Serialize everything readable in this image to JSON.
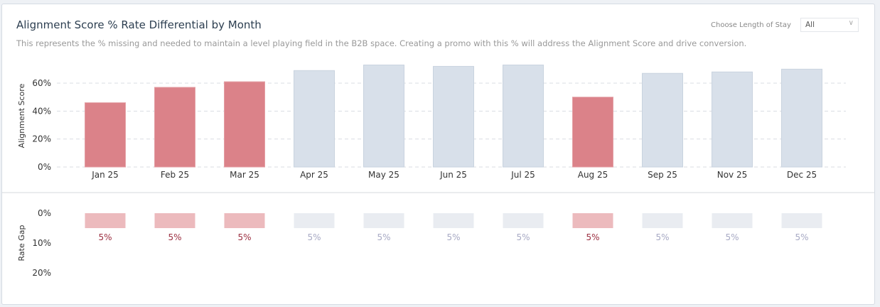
{
  "header": {
    "title": "Alignment Score % Rate Differential by Month",
    "subtitle": "This represents the % missing and needed to maintain a level playing field in the B2B space. Creating a promo with this % will address the Alignment Score and drive conversion.",
    "filter_label": "Choose Length of Stay",
    "filter_value": "All"
  },
  "colors": {
    "highlight": "#db8289",
    "normal": "#d8e0ea",
    "gap_highlight": "#ecbabd",
    "gap_normal": "#e9ecf1",
    "gap_label_highlight": "#9b2d3f",
    "gap_label_normal": "#a7a9c4"
  },
  "chart_data": [
    {
      "type": "bar",
      "ylabel": "Alignment Score",
      "ylim": [
        0,
        70
      ],
      "yticks": [
        "0%",
        "20%",
        "40%",
        "60%"
      ],
      "grid": true,
      "categories": [
        "Jan 25",
        "Feb 25",
        "Mar 25",
        "Apr 25",
        "May 25",
        "Jun 25",
        "Jul 25",
        "Aug 25",
        "Sep 25",
        "Nov 25",
        "Dec 25"
      ],
      "values": [
        46,
        57,
        61,
        69,
        73,
        72,
        73,
        50,
        67,
        68,
        70
      ],
      "highlighted": [
        true,
        true,
        true,
        false,
        false,
        false,
        false,
        true,
        false,
        false,
        false
      ]
    },
    {
      "type": "bar",
      "ylabel": "Rate Gap",
      "ylim": [
        0,
        20
      ],
      "yaxis_reversed": true,
      "yticks": [
        "0%",
        "10%",
        "20%"
      ],
      "categories": [
        "Jan 25",
        "Feb 25",
        "Mar 25",
        "Apr 25",
        "May 25",
        "Jun 25",
        "Jul 25",
        "Aug 25",
        "Sep 25",
        "Nov 25",
        "Dec 25"
      ],
      "values": [
        5,
        5,
        5,
        5,
        5,
        5,
        5,
        5,
        5,
        5,
        5
      ],
      "labels": [
        "5%",
        "5%",
        "5%",
        "5%",
        "5%",
        "5%",
        "5%",
        "5%",
        "5%",
        "5%",
        "5%"
      ]
    }
  ]
}
